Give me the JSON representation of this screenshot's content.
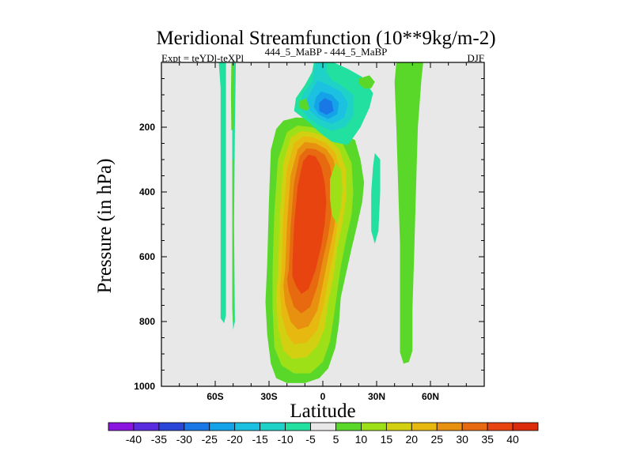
{
  "chart_data": {
    "type": "contour",
    "title": "Meridional Streamfunction (10**9kg/m-2)",
    "left_label": "Expt = teYDl-teXPl",
    "center_label": "444_5_MaBP - 444_5_MaBP",
    "right_label": "DJF",
    "xlabel": "Latitude",
    "ylabel": "Pressure (in hPa)",
    "x_range": [
      -90,
      90
    ],
    "y_range": [
      0,
      1000
    ],
    "y_inverted": true,
    "x_ticks": [
      {
        "value": -60,
        "label": "60S"
      },
      {
        "value": -30,
        "label": "30S"
      },
      {
        "value": 0,
        "label": "0"
      },
      {
        "value": 30,
        "label": "30N"
      },
      {
        "value": 60,
        "label": "60N"
      }
    ],
    "y_ticks": [
      {
        "value": 200,
        "label": "200"
      },
      {
        "value": 400,
        "label": "400"
      },
      {
        "value": 600,
        "label": "600"
      },
      {
        "value": 800,
        "label": "800"
      },
      {
        "value": 1000,
        "label": "1000"
      }
    ],
    "background_color": "#e8e8e8",
    "colorbar": {
      "labels": [
        "-40",
        "-35",
        "-30",
        "-25",
        "-20",
        "-15",
        "-10",
        "-5",
        "5",
        "10",
        "15",
        "20",
        "25",
        "30",
        "35",
        "40"
      ],
      "colors": [
        "#8a14e0",
        "#5a2ce0",
        "#2a46d8",
        "#1a78e6",
        "#14a2e8",
        "#1cc0e0",
        "#1ed2c8",
        "#22e0a0",
        "#e8e8e8",
        "#5ad82a",
        "#9ee018",
        "#d2d010",
        "#e6b810",
        "#e89010",
        "#e86a10",
        "#e84410",
        "#dc2a0c"
      ]
    },
    "regions": [
      {
        "level": 10,
        "points": [
          [
            -31,
            620
          ],
          [
            -30,
            420
          ],
          [
            -29,
            270
          ],
          [
            -26,
            205
          ],
          [
            -22,
            180
          ],
          [
            -15,
            170
          ],
          [
            -8,
            172
          ],
          [
            0,
            185
          ],
          [
            10,
            215
          ],
          [
            18,
            240
          ],
          [
            21,
            300
          ],
          [
            23,
            370
          ],
          [
            22,
            430
          ],
          [
            19,
            505
          ],
          [
            16,
            575
          ],
          [
            13,
            650
          ],
          [
            10,
            725
          ],
          [
            9,
            805
          ],
          [
            7,
            880
          ],
          [
            3,
            945
          ],
          [
            -2,
            975
          ],
          [
            -10,
            990
          ],
          [
            -20,
            990
          ],
          [
            -26,
            975
          ],
          [
            -29,
            930
          ],
          [
            -31,
            840
          ],
          [
            -32,
            740
          ]
        ]
      },
      {
        "level": 15,
        "points": [
          [
            -28,
            640
          ],
          [
            -27,
            460
          ],
          [
            -25,
            300
          ],
          [
            -20,
            215
          ],
          [
            -14,
            195
          ],
          [
            -6,
            200
          ],
          [
            3,
            220
          ],
          [
            11,
            250
          ],
          [
            16,
            310
          ],
          [
            17,
            400
          ],
          [
            16,
            470
          ],
          [
            13,
            545
          ],
          [
            10,
            630
          ],
          [
            8,
            710
          ],
          [
            6,
            790
          ],
          [
            4,
            860
          ],
          [
            0,
            925
          ],
          [
            -7,
            960
          ],
          [
            -16,
            960
          ],
          [
            -23,
            935
          ],
          [
            -27,
            880
          ],
          [
            -28,
            760
          ]
        ]
      },
      {
        "level": 20,
        "points": [
          [
            -25,
            640
          ],
          [
            -24,
            470
          ],
          [
            -22,
            310
          ],
          [
            -18,
            232
          ],
          [
            -12,
            212
          ],
          [
            -5,
            217
          ],
          [
            3,
            235
          ],
          [
            9,
            268
          ],
          [
            13,
            330
          ],
          [
            13,
            420
          ],
          [
            11,
            495
          ],
          [
            8,
            575
          ],
          [
            6,
            660
          ],
          [
            3,
            740
          ],
          [
            1,
            820
          ],
          [
            -3,
            875
          ],
          [
            -9,
            910
          ],
          [
            -17,
            915
          ],
          [
            -22,
            890
          ],
          [
            -25,
            820
          ],
          [
            -26,
            730
          ]
        ]
      },
      {
        "level": 25,
        "points": [
          [
            -23,
            640
          ],
          [
            -22,
            480
          ],
          [
            -20,
            330
          ],
          [
            -16,
            250
          ],
          [
            -11,
            228
          ],
          [
            -5,
            232
          ],
          [
            2,
            250
          ],
          [
            7,
            280
          ],
          [
            10,
            340
          ],
          [
            10,
            430
          ],
          [
            8,
            505
          ],
          [
            6,
            585
          ],
          [
            3,
            670
          ],
          [
            0,
            760
          ],
          [
            -3,
            825
          ],
          [
            -9,
            865
          ],
          [
            -16,
            870
          ],
          [
            -20,
            840
          ],
          [
            -23,
            780
          ],
          [
            -24,
            710
          ]
        ]
      },
      {
        "level": 30,
        "points": [
          [
            -21,
            640
          ],
          [
            -20,
            500
          ],
          [
            -18,
            350
          ],
          [
            -14,
            268
          ],
          [
            -10,
            246
          ],
          [
            -4,
            250
          ],
          [
            2,
            268
          ],
          [
            6,
            300
          ],
          [
            8,
            360
          ],
          [
            8,
            445
          ],
          [
            6,
            520
          ],
          [
            3,
            600
          ],
          [
            0,
            685
          ],
          [
            -3,
            765
          ],
          [
            -8,
            815
          ],
          [
            -14,
            825
          ],
          [
            -18,
            800
          ],
          [
            -21,
            745
          ],
          [
            -22,
            690
          ]
        ]
      },
      {
        "level": 35,
        "points": [
          [
            -19,
            640
          ],
          [
            -18,
            510
          ],
          [
            -16,
            370
          ],
          [
            -13,
            290
          ],
          [
            -9,
            265
          ],
          [
            -4,
            268
          ],
          [
            1,
            285
          ],
          [
            4,
            318
          ],
          [
            6,
            380
          ],
          [
            5,
            460
          ],
          [
            3,
            535
          ],
          [
            0,
            610
          ],
          [
            -3,
            690
          ],
          [
            -7,
            755
          ],
          [
            -12,
            775
          ],
          [
            -16,
            755
          ],
          [
            -19,
            705
          ],
          [
            -20,
            670
          ]
        ]
      },
      {
        "level": 40,
        "points": [
          [
            -17,
            620
          ],
          [
            -16,
            500
          ],
          [
            -14,
            380
          ],
          [
            -11,
            305
          ],
          [
            -8,
            285
          ],
          [
            -4,
            290
          ],
          [
            -1,
            320
          ],
          [
            1,
            370
          ],
          [
            2,
            430
          ],
          [
            1,
            500
          ],
          [
            -1,
            570
          ],
          [
            -4,
            640
          ],
          [
            -8,
            700
          ],
          [
            -12,
            715
          ],
          [
            -15,
            690
          ],
          [
            -17,
            660
          ]
        ]
      },
      {
        "level": 15,
        "points": [
          [
            4,
            360
          ],
          [
            7,
            310
          ],
          [
            10,
            330
          ],
          [
            11,
            390
          ],
          [
            10,
            450
          ],
          [
            8,
            500
          ],
          [
            5,
            470
          ],
          [
            4,
            420
          ]
        ]
      },
      {
        "level": 10,
        "points": [
          [
            41,
            0
          ],
          [
            56,
            0
          ],
          [
            55,
            50
          ],
          [
            53,
            200
          ],
          [
            52,
            380
          ],
          [
            51,
            580
          ],
          [
            50,
            760
          ],
          [
            50,
            890
          ],
          [
            48,
            925
          ],
          [
            45,
            930
          ],
          [
            43,
            895
          ],
          [
            43,
            740
          ],
          [
            43,
            560
          ],
          [
            42,
            380
          ],
          [
            41,
            200
          ],
          [
            40,
            60
          ]
        ]
      },
      {
        "level": -5,
        "points": [
          [
            -58,
            0
          ],
          [
            -54,
            0
          ],
          [
            -54,
            120
          ],
          [
            -54,
            300
          ],
          [
            -54,
            500
          ],
          [
            -54,
            700
          ],
          [
            -54,
            780
          ],
          [
            -55,
            805
          ],
          [
            -57,
            790
          ],
          [
            -57,
            650
          ],
          [
            -57,
            450
          ],
          [
            -57,
            250
          ],
          [
            -57,
            80
          ]
        ]
      },
      {
        "level": -5,
        "points": [
          [
            -50.5,
            0
          ],
          [
            -48.5,
            0
          ],
          [
            -49,
            200
          ],
          [
            -49.5,
            500
          ],
          [
            -49,
            800
          ],
          [
            -50,
            825
          ],
          [
            -50.5,
            760
          ],
          [
            -50.5,
            500
          ],
          [
            -50.5,
            250
          ]
        ]
      },
      {
        "level": 10,
        "points": [
          [
            -51,
            0
          ],
          [
            -49.4,
            0
          ],
          [
            -49.6,
            205
          ],
          [
            -51,
            210
          ],
          [
            -51.2,
            100
          ]
        ]
      },
      {
        "level": 10,
        "points": [
          [
            -50.2,
            300
          ],
          [
            -49.6,
            300
          ],
          [
            -49.6,
            800
          ],
          [
            -50.2,
            800
          ]
        ]
      },
      {
        "level": -5,
        "points": [
          [
            -5,
            0
          ],
          [
            6,
            0
          ],
          [
            14,
            20
          ],
          [
            22,
            45
          ],
          [
            28,
            95
          ],
          [
            26,
            140
          ],
          [
            21,
            200
          ],
          [
            14,
            255
          ],
          [
            5,
            245
          ],
          [
            -2,
            215
          ],
          [
            -9,
            180
          ],
          [
            -16,
            150
          ],
          [
            -15,
            110
          ],
          [
            -10,
            70
          ],
          [
            -6,
            30
          ]
        ]
      },
      {
        "level": -10,
        "points": [
          [
            -4,
            0
          ],
          [
            2,
            0
          ],
          [
            2,
            30
          ],
          [
            5,
            55
          ],
          [
            10,
            70
          ],
          [
            17,
            100
          ],
          [
            17,
            165
          ],
          [
            12,
            200
          ],
          [
            5,
            212
          ],
          [
            -2,
            195
          ],
          [
            -9,
            168
          ],
          [
            -13,
            135
          ],
          [
            -11,
            95
          ],
          [
            -6,
            60
          ],
          [
            -5,
            25
          ]
        ]
      },
      {
        "level": 10,
        "points": [
          [
            20,
            50
          ],
          [
            26,
            40
          ],
          [
            29,
            60
          ],
          [
            27,
            80
          ],
          [
            23,
            80
          ],
          [
            20,
            65
          ]
        ]
      },
      {
        "level": 10,
        "points": [
          [
            -13,
            120
          ],
          [
            -9,
            110
          ],
          [
            -6,
            130
          ],
          [
            -9,
            150
          ],
          [
            -13,
            140
          ]
        ]
      },
      {
        "level": -15,
        "points": [
          [
            -3,
            55
          ],
          [
            3,
            70
          ],
          [
            10,
            90
          ],
          [
            14,
            125
          ],
          [
            12,
            170
          ],
          [
            5,
            190
          ],
          [
            -2,
            175
          ],
          [
            -7,
            150
          ],
          [
            -9,
            115
          ],
          [
            -6,
            85
          ]
        ]
      },
      {
        "level": -20,
        "points": [
          [
            -1,
            90
          ],
          [
            5,
            100
          ],
          [
            9,
            125
          ],
          [
            8,
            160
          ],
          [
            3,
            175
          ],
          [
            -2,
            162
          ],
          [
            -5,
            138
          ],
          [
            -4,
            110
          ]
        ]
      },
      {
        "level": -25,
        "points": [
          [
            1,
            110
          ],
          [
            5,
            120
          ],
          [
            6,
            150
          ],
          [
            2,
            162
          ],
          [
            -2,
            150
          ],
          [
            -2,
            125
          ]
        ]
      },
      {
        "level": -5,
        "points": [
          [
            29,
            280
          ],
          [
            32,
            300
          ],
          [
            32,
            400
          ],
          [
            31,
            520
          ],
          [
            29,
            560
          ],
          [
            27,
            520
          ],
          [
            27,
            400
          ],
          [
            28,
            320
          ]
        ]
      }
    ]
  }
}
